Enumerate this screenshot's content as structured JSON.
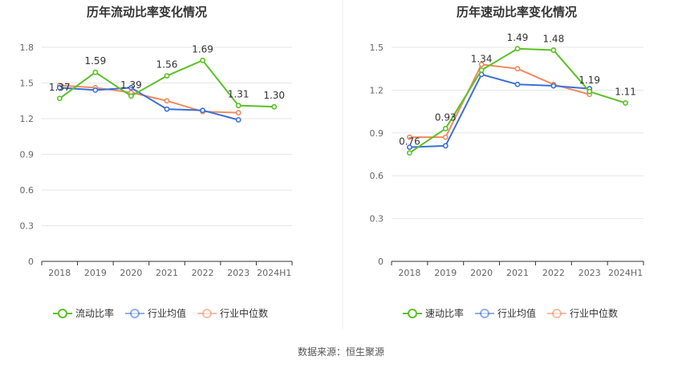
{
  "source": "数据来源：恒生聚源",
  "colors": {
    "primary": "#5ac226",
    "avg": "#3a6fd8",
    "median": "#f08a5d",
    "grid": "#e6e6e6",
    "axis": "#333333",
    "text": "#666666",
    "title": "#333333"
  },
  "chart_data": [
    {
      "type": "line",
      "title": "历年流动比率变化情况",
      "categories": [
        "2018",
        "2019",
        "2020",
        "2021",
        "2022",
        "2023",
        "2024H1"
      ],
      "ylim": [
        0,
        1.8
      ],
      "yticks": [
        0,
        0.3,
        0.6,
        0.9,
        1.2,
        1.5,
        1.8
      ],
      "ytick_labels": [
        "0",
        "0.3",
        "0.6",
        "0.9",
        "1.2",
        "1.5",
        "1.8"
      ],
      "grid": true,
      "legend_position": "bottom",
      "series": [
        {
          "name": "流动比率",
          "color": "#5ac226",
          "labels": true,
          "values": [
            1.37,
            1.59,
            1.39,
            1.56,
            1.69,
            1.31,
            1.3
          ],
          "value_labels": [
            "1.37",
            "1.59",
            "1.39",
            "1.56",
            "1.69",
            "1.31",
            "1.30"
          ]
        },
        {
          "name": "行业均值",
          "color": "#3a6fd8",
          "labels": false,
          "values": [
            1.46,
            1.44,
            1.46,
            1.28,
            1.27,
            1.19,
            null
          ]
        },
        {
          "name": "行业中位数",
          "color": "#f08a5d",
          "labels": false,
          "values": [
            1.48,
            1.46,
            1.42,
            1.35,
            1.26,
            1.25,
            null
          ]
        }
      ]
    },
    {
      "type": "line",
      "title": "历年速动比率变化情况",
      "categories": [
        "2018",
        "2019",
        "2020",
        "2021",
        "2022",
        "2023",
        "2024H1"
      ],
      "ylim": [
        0,
        1.5
      ],
      "yticks": [
        0,
        0.3,
        0.6,
        0.9,
        1.2,
        1.5
      ],
      "ytick_labels": [
        "0",
        "0.3",
        "0.6",
        "0.9",
        "1.2",
        "1.5"
      ],
      "grid": true,
      "legend_position": "bottom",
      "series": [
        {
          "name": "速动比率",
          "color": "#5ac226",
          "labels": true,
          "values": [
            0.76,
            0.93,
            1.34,
            1.49,
            1.48,
            1.19,
            1.11
          ],
          "value_labels": [
            "0.76",
            "0.93",
            "1.34",
            "1.49",
            "1.48",
            "1.19",
            "1.11"
          ]
        },
        {
          "name": "行业均值",
          "color": "#3a6fd8",
          "labels": false,
          "values": [
            0.8,
            0.81,
            1.31,
            1.24,
            1.23,
            1.21,
            null
          ]
        },
        {
          "name": "行业中位数",
          "color": "#f08a5d",
          "labels": false,
          "values": [
            0.87,
            0.87,
            1.38,
            1.35,
            1.24,
            1.17,
            null
          ]
        }
      ]
    }
  ]
}
